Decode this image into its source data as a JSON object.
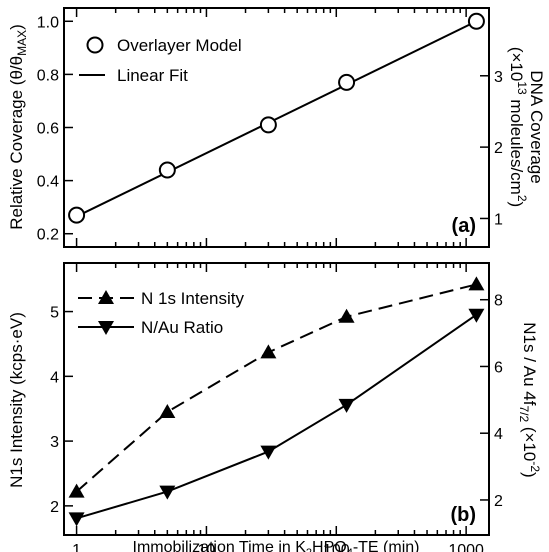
{
  "chart_data": [
    {
      "panel_label": "(a)",
      "type": "scatter",
      "x_scale": "log",
      "xlim": [
        0.8,
        1500
      ],
      "x_ticks_labels": [],
      "ylim": [
        0.15,
        1.05
      ],
      "y_ticks": [
        0.2,
        0.4,
        0.6,
        0.8,
        1.0
      ],
      "y_tick_labels": [
        "0.2",
        "0.4",
        "0.6",
        "0.8",
        "1.0"
      ],
      "ylabel_main": "Relative Coverage (θ/θ",
      "ylabel_sub": "MAX",
      "ylabel_end": ")",
      "y2_ticks": [
        1,
        2,
        3
      ],
      "y2_tick_labels": [
        "1",
        "2",
        "3"
      ],
      "y2_range_at_y_min_max": [
        0.15,
        1.05
      ],
      "y2lim": [
        0.6,
        3.95
      ],
      "y2label_line1": "DNA Coverage",
      "y2label_line2_pre": "(×10",
      "y2label_line2_sup": "13",
      "y2label_line2_post": " moleules/cm",
      "y2label_line2_sup2": "2",
      "y2label_line2_end": ")",
      "legend_placement": "top-left",
      "series": [
        {
          "name": "Overlayer Model",
          "marker": "open-circle",
          "x": [
            1,
            5,
            30,
            120,
            1200
          ],
          "values": [
            0.27,
            0.44,
            0.61,
            0.77,
            1.0
          ]
        },
        {
          "name": "Linear Fit",
          "line": "solid",
          "x": [
            1,
            1200
          ],
          "values": [
            0.265,
            1.0
          ]
        }
      ]
    },
    {
      "panel_label": "(b)",
      "type": "line",
      "x_scale": "log",
      "xlim": [
        0.8,
        1500
      ],
      "x_ticks": [
        1,
        10,
        100,
        1000
      ],
      "x_tick_labels": [
        "1",
        "10",
        "100",
        "1000"
      ],
      "xlabel_pre": "Immobilization Time in K",
      "xlabel_sub1": "2",
      "xlabel_mid": "HPO",
      "xlabel_sub2": "4",
      "xlabel_post": "-TE (min)",
      "ylim": [
        1.55,
        5.75
      ],
      "y_ticks": [
        2,
        3,
        4,
        5
      ],
      "y_tick_labels": [
        "2",
        "3",
        "4",
        "5"
      ],
      "ylabel": "N1s Intensity (kcps·eV)",
      "y2lim": [
        0.95,
        9.1
      ],
      "y2_ticks": [
        2,
        4,
        6,
        8
      ],
      "y2_tick_labels": [
        "2",
        "4",
        "6",
        "8"
      ],
      "y2label_pre": "N1s / Au 4f",
      "y2label_sub": "7/2",
      "y2label_mid": " (×10",
      "y2label_sup": "-2",
      "y2label_end": ")",
      "legend_placement": "top-left",
      "series": [
        {
          "name": "N 1s Intensity",
          "marker": "triangle-up",
          "line": "dashed",
          "axis": "left",
          "x": [
            1,
            5,
            30,
            120,
            1200
          ],
          "values": [
            2.22,
            3.45,
            4.37,
            4.92,
            5.42
          ]
        },
        {
          "name": "N/Au Ratio",
          "marker": "triangle-down",
          "line": "solid",
          "axis": "right",
          "x": [
            1,
            5,
            30,
            120,
            1200
          ],
          "values": [
            1.45,
            2.25,
            3.45,
            4.85,
            7.55
          ]
        }
      ]
    }
  ]
}
